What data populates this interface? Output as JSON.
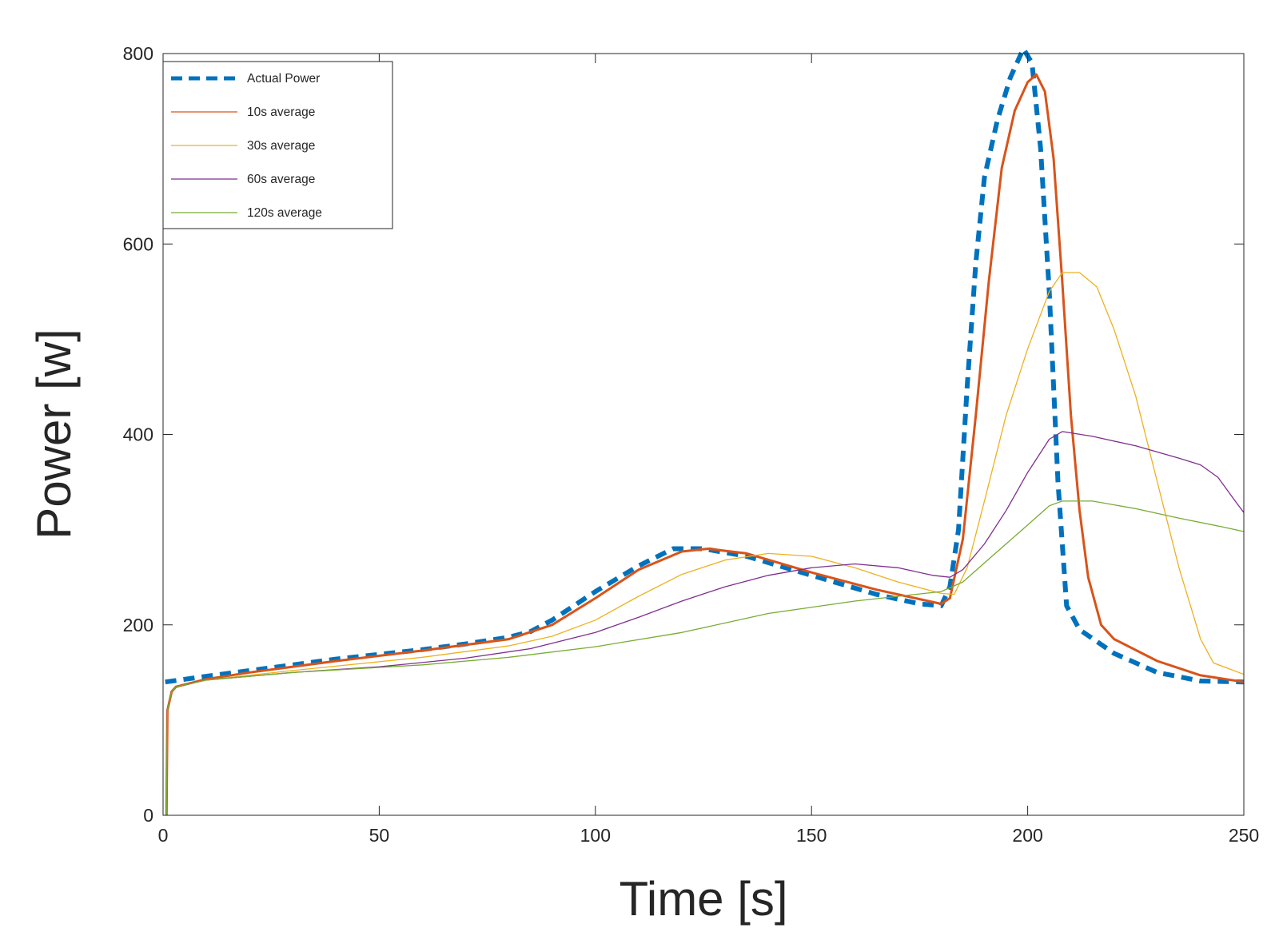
{
  "chart_data": {
    "type": "line",
    "title": "",
    "xlabel": "Time [s]",
    "ylabel": "Power [w]",
    "xlim": [
      0,
      250
    ],
    "ylim": [
      0,
      800
    ],
    "xticks": [
      0,
      50,
      100,
      150,
      200,
      250
    ],
    "yticks": [
      0,
      200,
      400,
      600,
      800
    ],
    "grid": false,
    "legend_position": "top-left",
    "series": [
      {
        "name": "Actual Power",
        "color": "#0072BD",
        "style": "dashed",
        "x": [
          0.5,
          10,
          20,
          30,
          40,
          50,
          60,
          70,
          80,
          85,
          90,
          100,
          110,
          118,
          125,
          135,
          150,
          165,
          175,
          180,
          182,
          184,
          186,
          188,
          190,
          193,
          196,
          199,
          201,
          203,
          205,
          207,
          209,
          212,
          220,
          230,
          240,
          250
        ],
        "y": [
          140,
          146,
          152,
          158,
          164,
          169,
          174,
          180,
          187,
          193,
          205,
          235,
          262,
          280,
          280,
          272,
          252,
          232,
          222,
          220,
          240,
          300,
          450,
          580,
          670,
          730,
          775,
          805,
          790,
          700,
          550,
          350,
          220,
          195,
          170,
          150,
          141,
          140
        ]
      },
      {
        "name": "10s average",
        "color": "#D95319",
        "style": "solid",
        "x": [
          0.8,
          1,
          2,
          3,
          10,
          20,
          40,
          60,
          80,
          90,
          100,
          110,
          120,
          126,
          135,
          150,
          165,
          180,
          182,
          185,
          188,
          191,
          194,
          197,
          200,
          202,
          204,
          206,
          208,
          210,
          212,
          214,
          217,
          220,
          230,
          240,
          250
        ],
        "y": [
          0,
          110,
          130,
          135,
          143,
          150,
          162,
          173,
          185,
          200,
          228,
          258,
          277,
          280,
          275,
          255,
          237,
          222,
          228,
          290,
          420,
          560,
          680,
          740,
          770,
          778,
          760,
          690,
          560,
          420,
          320,
          250,
          200,
          185,
          162,
          147,
          140
        ]
      },
      {
        "name": "30s average",
        "color": "#EDB120",
        "style": "solid",
        "x": [
          0.8,
          1,
          2,
          3,
          10,
          30,
          60,
          80,
          90,
          100,
          110,
          120,
          130,
          140,
          150,
          160,
          170,
          180,
          183,
          186,
          190,
          195,
          200,
          205,
          208,
          212,
          216,
          220,
          225,
          230,
          235,
          240,
          243,
          250
        ],
        "y": [
          0,
          110,
          130,
          135,
          142,
          152,
          166,
          178,
          188,
          205,
          230,
          253,
          268,
          275,
          272,
          260,
          245,
          233,
          232,
          260,
          330,
          420,
          490,
          550,
          570,
          570,
          555,
          510,
          440,
          350,
          260,
          185,
          160,
          148
        ]
      },
      {
        "name": "60s average",
        "color": "#7E2F8E",
        "style": "solid",
        "x": [
          0.8,
          1,
          2,
          3,
          10,
          30,
          50,
          70,
          85,
          100,
          110,
          120,
          130,
          140,
          150,
          160,
          170,
          178,
          182,
          185,
          190,
          195,
          200,
          205,
          208,
          215,
          225,
          235,
          240,
          244,
          248,
          250
        ],
        "y": [
          0,
          110,
          130,
          135,
          142,
          150,
          156,
          165,
          175,
          192,
          208,
          225,
          240,
          252,
          260,
          264,
          260,
          252,
          250,
          258,
          285,
          320,
          360,
          395,
          403,
          398,
          388,
          375,
          368,
          355,
          330,
          318
        ]
      },
      {
        "name": "120s average",
        "color": "#77AC30",
        "style": "solid",
        "x": [
          0.8,
          1,
          2,
          3,
          10,
          30,
          60,
          80,
          100,
          120,
          140,
          160,
          180,
          185,
          190,
          195,
          200,
          205,
          208,
          215,
          225,
          235,
          245,
          250
        ],
        "y": [
          0,
          110,
          130,
          135,
          142,
          150,
          158,
          166,
          177,
          192,
          212,
          225,
          235,
          245,
          265,
          285,
          305,
          325,
          330,
          330,
          322,
          312,
          303,
          298
        ]
      }
    ]
  }
}
